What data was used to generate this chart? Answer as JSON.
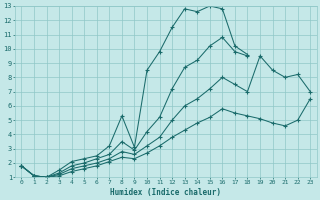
{
  "xlabel": "Humidex (Indice chaleur)",
  "ylabel": "",
  "bg_color": "#c5e8e8",
  "grid_color": "#90c8c8",
  "line_color": "#1a6b6b",
  "xlim": [
    -0.5,
    23.5
  ],
  "ylim": [
    1,
    13
  ],
  "xticks": [
    0,
    1,
    2,
    3,
    4,
    5,
    6,
    7,
    8,
    9,
    10,
    11,
    12,
    13,
    14,
    15,
    16,
    17,
    18,
    19,
    20,
    21,
    22,
    23
  ],
  "yticks": [
    1,
    2,
    3,
    4,
    5,
    6,
    7,
    8,
    9,
    10,
    11,
    12,
    13
  ],
  "lines": [
    {
      "x": [
        0,
        1,
        2,
        3,
        4,
        5,
        6,
        7,
        8,
        9,
        10,
        11,
        12,
        13,
        14,
        15,
        16,
        17,
        18,
        19,
        20,
        21,
        22,
        23
      ],
      "y": [
        1.8,
        1.1,
        1.0,
        1.5,
        2.1,
        2.3,
        2.5,
        3.2,
        5.3,
        3.1,
        8.5,
        9.8,
        11.5,
        12.8,
        12.6,
        13.0,
        12.8,
        10.2,
        9.6,
        null,
        null,
        null,
        null,
        null
      ]
    },
    {
      "x": [
        0,
        1,
        2,
        3,
        4,
        5,
        6,
        7,
        8,
        9,
        10,
        11,
        12,
        13,
        14,
        15,
        16,
        17,
        18,
        19,
        20,
        21,
        22,
        23
      ],
      "y": [
        1.8,
        1.1,
        1.0,
        1.3,
        1.8,
        2.0,
        2.3,
        2.6,
        3.5,
        2.9,
        4.2,
        5.2,
        7.2,
        8.7,
        9.2,
        10.2,
        10.8,
        9.8,
        9.5,
        null,
        null,
        null,
        null,
        null
      ]
    },
    {
      "x": [
        0,
        1,
        2,
        3,
        4,
        5,
        6,
        7,
        8,
        9,
        10,
        11,
        12,
        13,
        14,
        15,
        16,
        17,
        18,
        19,
        20,
        21,
        22,
        23
      ],
      "y": [
        1.8,
        1.1,
        1.0,
        1.2,
        1.6,
        1.8,
        2.0,
        2.3,
        2.8,
        2.6,
        3.2,
        3.8,
        5.0,
        6.0,
        6.5,
        7.2,
        8.0,
        7.5,
        7.0,
        9.5,
        8.5,
        8.0,
        8.2,
        7.0
      ]
    },
    {
      "x": [
        0,
        1,
        2,
        3,
        4,
        5,
        6,
        7,
        8,
        9,
        10,
        11,
        12,
        13,
        14,
        15,
        16,
        17,
        18,
        19,
        20,
        21,
        22,
        23
      ],
      "y": [
        1.8,
        1.1,
        1.0,
        1.1,
        1.4,
        1.6,
        1.8,
        2.1,
        2.4,
        2.3,
        2.7,
        3.2,
        3.8,
        4.3,
        4.8,
        5.2,
        5.8,
        5.5,
        5.3,
        5.1,
        4.8,
        4.6,
        5.0,
        6.5
      ]
    }
  ]
}
